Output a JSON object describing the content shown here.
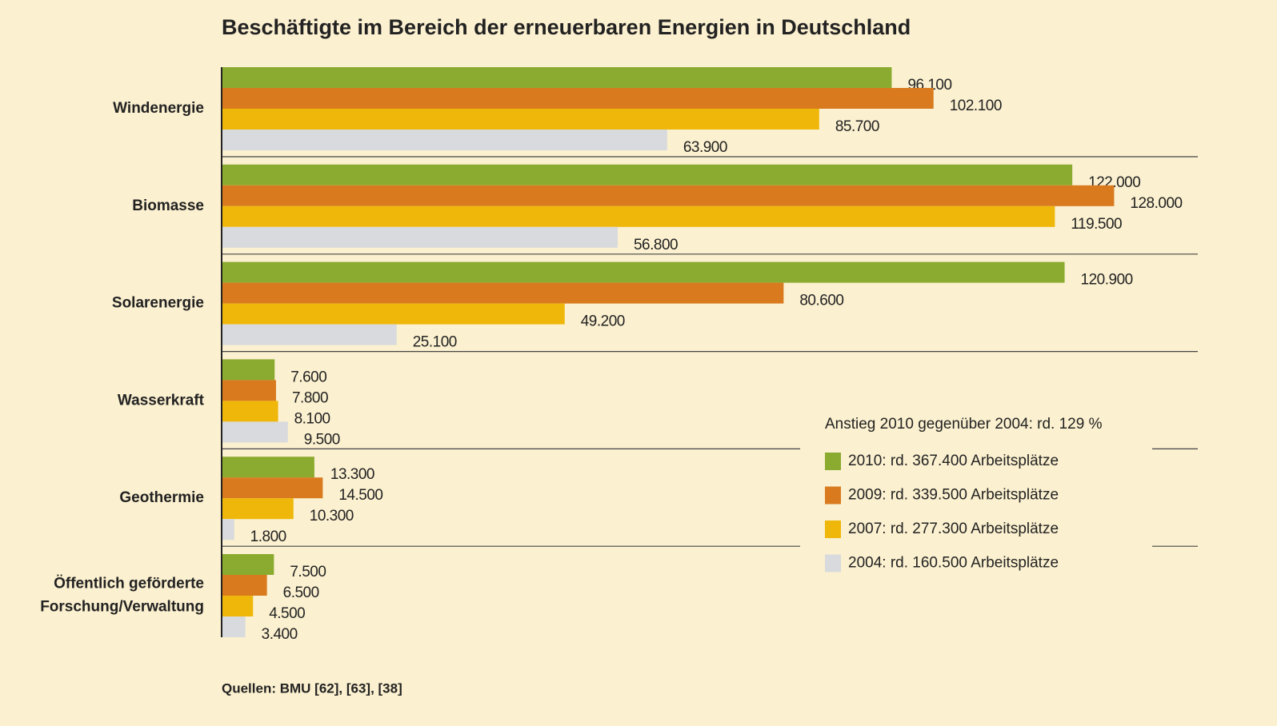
{
  "chart_data": {
    "type": "bar",
    "orientation": "horizontal",
    "title": "Beschäftigte im Bereich der erneuerbaren Energien in Deutschland",
    "categories": [
      "Windenergie",
      "Biomasse",
      "Solarenergie",
      "Wasserkraft",
      "Geothermie",
      "Öffentlich geförderte\nForschung/Verwaltung"
    ],
    "series": [
      {
        "name": "2010: rd. 367.400 Arbeitsplätze",
        "color": "#8aab2f",
        "values": [
          96100,
          122000,
          120900,
          7600,
          13300,
          7500
        ],
        "value_labels": [
          "96.100",
          "122.000",
          "120.900",
          "7.600",
          "13.300",
          "7.500"
        ]
      },
      {
        "name": "2009: rd. 339.500 Arbeitsplätze",
        "color": "#d97a1f",
        "values": [
          102100,
          128000,
          80600,
          7800,
          14500,
          6500
        ],
        "value_labels": [
          "102.100",
          "128.000",
          "80.600",
          "7.800",
          "14.500",
          "6.500"
        ]
      },
      {
        "name": "2007: rd. 277.300 Arbeitsplätze",
        "color": "#efb70a",
        "values": [
          85700,
          119500,
          49200,
          8100,
          10300,
          4500
        ],
        "value_labels": [
          "85.700",
          "119.500",
          "49.200",
          "8.100",
          "10.300",
          "4.500"
        ]
      },
      {
        "name": "2004: rd. 160.500 Arbeitsplätze",
        "color": "#d8dadd",
        "values": [
          63900,
          56800,
          25100,
          9500,
          1800,
          3400
        ],
        "value_labels": [
          "63.900",
          "56.800",
          "25.100",
          "9.500",
          "1.800",
          "3.400"
        ]
      }
    ],
    "xlim": [
      0,
      140000
    ],
    "annotation": "Anstieg 2010 gegenüber 2004: rd. 129 %",
    "source": "Quellen: BMU [62], [63], [38]"
  }
}
